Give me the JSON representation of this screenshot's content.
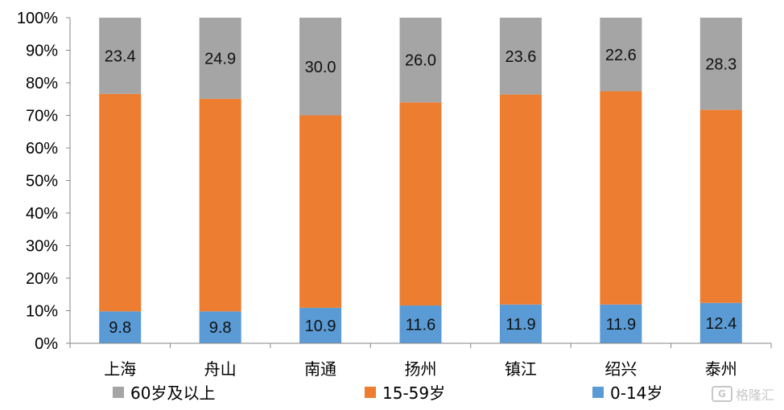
{
  "chart_data": {
    "type": "bar",
    "stacked": true,
    "percent_stacked": true,
    "categories": [
      "上海",
      "舟山",
      "南通",
      "扬州",
      "镇江",
      "绍兴",
      "泰州"
    ],
    "series": [
      {
        "name": "0-14岁",
        "color": "#5B9BD5",
        "values": [
          9.8,
          9.8,
          10.9,
          11.6,
          11.9,
          11.9,
          12.4
        ],
        "labels": [
          "9.8",
          "9.8",
          "10.9",
          "11.6",
          "11.9",
          "11.9",
          "12.4"
        ]
      },
      {
        "name": "15-59岁",
        "color": "#ED7D31",
        "values": [
          66.8,
          65.3,
          59.1,
          62.4,
          64.5,
          65.5,
          59.3
        ],
        "labels": []
      },
      {
        "name": "60岁及以上",
        "color": "#A5A5A5",
        "values": [
          23.4,
          24.9,
          30.0,
          26.0,
          23.6,
          22.6,
          28.3
        ],
        "labels": [
          "23.4",
          "24.9",
          "30.0",
          "26.0",
          "23.6",
          "22.6",
          "28.3"
        ]
      }
    ],
    "yticks": [
      "0%",
      "10%",
      "20%",
      "30%",
      "40%",
      "50%",
      "60%",
      "70%",
      "80%",
      "90%",
      "100%"
    ],
    "ylim": [
      0,
      100
    ],
    "grid": false,
    "legend_position": "bottom",
    "legend_order": [
      "60岁及以上",
      "15-59岁",
      "0-14岁"
    ]
  },
  "watermark": {
    "text": "格隆汇",
    "logo_glyph": "G"
  }
}
